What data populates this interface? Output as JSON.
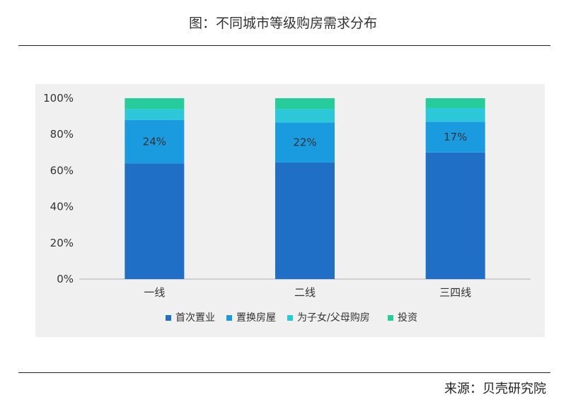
{
  "header": {
    "title": "图：不同城市等级购房需求分布"
  },
  "footer": {
    "source": "来源：贝壳研究院"
  },
  "colors": {
    "first_purchase": "#1f6fc7",
    "upgrade": "#1a9be0",
    "for_family": "#2cc7d9",
    "investment": "#26cc9a",
    "axis": "#b0b0b0",
    "panel": "#f0f0f0"
  },
  "chart_data": {
    "type": "bar",
    "stacked": true,
    "title": "图：不同城市等级购房需求分布",
    "categories": [
      "一线",
      "二线",
      "三四线"
    ],
    "y_ticks": [
      "0%",
      "20%",
      "40%",
      "60%",
      "80%",
      "100%"
    ],
    "ylim": [
      0,
      100
    ],
    "grid": false,
    "legend_position": "bottom",
    "series": [
      {
        "name": "首次置业",
        "values": [
          64,
          64.5,
          70
        ],
        "color": "#1f6fc7"
      },
      {
        "name": "置换房屋",
        "values": [
          24,
          22,
          17
        ],
        "color": "#1a9be0",
        "data_labels": [
          "24%",
          "22%",
          "17%"
        ]
      },
      {
        "name": "为子女/父母购房",
        "values": [
          6,
          7.5,
          7.5
        ],
        "color": "#2cc7d9"
      },
      {
        "name": "投资",
        "values": [
          6,
          6,
          5.5
        ],
        "color": "#26cc9a"
      }
    ]
  }
}
